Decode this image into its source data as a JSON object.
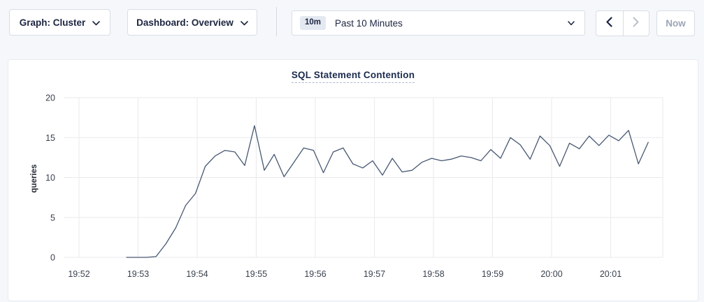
{
  "page": {
    "background_color": "#f5f7fa"
  },
  "toolbar": {
    "graph_dropdown": {
      "label": "Graph: Cluster"
    },
    "dashboard_dropdown": {
      "label": "Dashboard: Overview"
    },
    "time_window": {
      "badge": "10m",
      "label": "Past 10 Minutes"
    },
    "prev_button": {
      "enabled": true
    },
    "next_button": {
      "enabled": false
    },
    "now_button": {
      "label": "Now",
      "enabled": false
    }
  },
  "chart": {
    "title": "SQL Statement Contention",
    "title_color": "#1b2b4e",
    "line_color": "#475872",
    "grid_color": "#e9eaec",
    "tick_color": "#3a414e"
  },
  "chart_data": {
    "type": "line",
    "title": "SQL Statement Contention",
    "xlabel": "",
    "ylabel": "queries",
    "ylim": [
      0,
      20
    ],
    "yticks": [
      0,
      5,
      10,
      15,
      20
    ],
    "xticks": [
      "19:52",
      "19:53",
      "19:54",
      "19:55",
      "19:56",
      "19:57",
      "19:58",
      "19:59",
      "20:00",
      "20:01"
    ],
    "grid": true,
    "legend_position": "none",
    "series": [
      {
        "name": "queries",
        "color": "#475872",
        "x": [
          "19:52:50",
          "19:53:00",
          "19:53:10",
          "19:53:20",
          "19:53:30",
          "19:53:40",
          "19:53:50",
          "19:54:00",
          "19:54:10",
          "19:54:20",
          "19:54:30",
          "19:54:40",
          "19:54:50",
          "19:55:00",
          "19:55:10",
          "19:55:20",
          "19:55:30",
          "19:55:40",
          "19:55:50",
          "19:56:00",
          "19:56:10",
          "19:56:20",
          "19:56:30",
          "19:56:40",
          "19:56:50",
          "19:57:00",
          "19:57:10",
          "19:57:20",
          "19:57:30",
          "19:57:40",
          "19:57:50",
          "19:58:00",
          "19:58:10",
          "19:58:20",
          "19:58:30",
          "19:58:40",
          "19:58:50",
          "19:59:00",
          "19:59:10",
          "19:59:20",
          "19:59:30",
          "19:59:40",
          "19:59:50",
          "20:00:00",
          "20:00:10",
          "20:00:20",
          "20:00:30",
          "20:00:40",
          "20:00:50",
          "20:01:00",
          "20:01:10",
          "20:01:20",
          "20:01:30",
          "20:01:40"
        ],
        "values": [
          0,
          0,
          0,
          0.1,
          1.7,
          3.7,
          6.5,
          8.0,
          11.4,
          12.7,
          13.4,
          13.2,
          11.5,
          16.5,
          10.9,
          12.9,
          10.1,
          11.9,
          13.7,
          13.4,
          10.6,
          13.2,
          13.7,
          11.7,
          11.2,
          12.1,
          10.3,
          12.4,
          10.7,
          10.9,
          11.9,
          12.4,
          12.1,
          12.3,
          12.7,
          12.5,
          12.1,
          13.5,
          12.4,
          15.0,
          14.1,
          12.3,
          15.2,
          14.0,
          11.4,
          14.3,
          13.6,
          15.2,
          14.0,
          15.3,
          14.6,
          15.9,
          11.7,
          14.4
        ]
      }
    ]
  }
}
